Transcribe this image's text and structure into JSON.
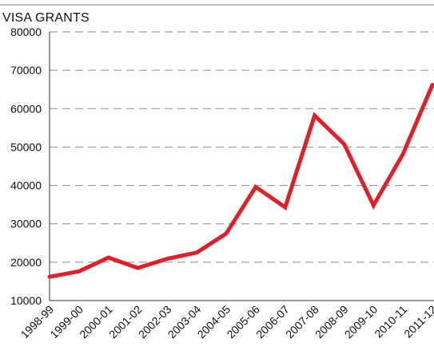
{
  "chart_data": {
    "type": "line",
    "title": "VISA GRANTS",
    "xlabel": "",
    "ylabel": "",
    "categories": [
      "1998-99",
      "1999-00",
      "2000-01",
      "2001-02",
      "2002-03",
      "2003-04",
      "2004-05",
      "2005-06",
      "2006-07",
      "2007-08",
      "2008-09",
      "2009-10",
      "2010-11",
      "2011-12"
    ],
    "series": [
      {
        "values": [
          16200,
          17600,
          21200,
          18500,
          20900,
          22500,
          27500,
          39600,
          34300,
          58200,
          50800,
          34800,
          48200,
          66200
        ]
      }
    ],
    "ylim": [
      10000,
      80000
    ],
    "yticks": [
      10000,
      20000,
      30000,
      40000,
      50000,
      60000,
      70000,
      80000
    ],
    "grid": true,
    "colors": {
      "line": "#e21e26",
      "grid": "#8a8a8a",
      "axis": "#333333",
      "text": "#111111"
    }
  }
}
